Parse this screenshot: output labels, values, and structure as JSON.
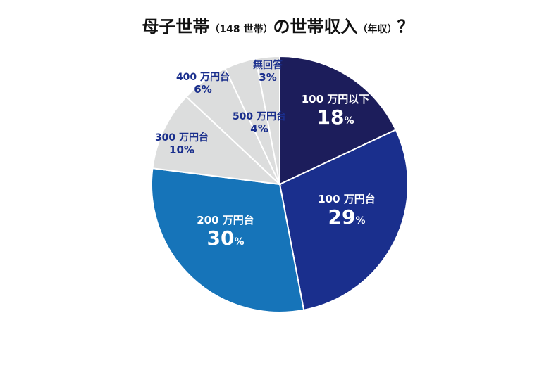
{
  "title": {
    "main": "母子世帯",
    "count": "（148 世帯）",
    "rest": "の世帯収入",
    "unit": "（年収）",
    "mark": "？"
  },
  "chart_data": {
    "type": "pie",
    "start_angle_deg": 0,
    "direction": "clockwise",
    "slices": [
      {
        "label": "100 万円以下",
        "value": 18,
        "display": "18",
        "unit": "%",
        "color": "#1c1d5b",
        "text_color": "#ffffff",
        "big": true
      },
      {
        "label": "100 万円台",
        "value": 29,
        "display": "29",
        "unit": "%",
        "color": "#1a2f8d",
        "text_color": "#ffffff",
        "big": true
      },
      {
        "label": "200 万円台",
        "value": 30,
        "display": "30",
        "unit": "%",
        "color": "#1674b9",
        "text_color": "#ffffff",
        "big": true
      },
      {
        "label": "300 万円台",
        "value": 10,
        "display": "10%",
        "unit": "",
        "color": "#dcdddd",
        "text_color": "#1a2f8d",
        "big": false
      },
      {
        "label": "400 万円台",
        "value": 6,
        "display": "6%",
        "unit": "",
        "color": "#dcdddd",
        "text_color": "#1a2f8d",
        "big": false
      },
      {
        "label": "500 万円台",
        "value": 4,
        "display": "4%",
        "unit": "",
        "color": "#dcdddd",
        "text_color": "#1a2f8d",
        "big": false
      },
      {
        "label": "無回答",
        "value": 3,
        "display": "3%",
        "unit": "",
        "color": "#dcdddd",
        "text_color": "#1a2f8d",
        "big": false
      }
    ]
  }
}
